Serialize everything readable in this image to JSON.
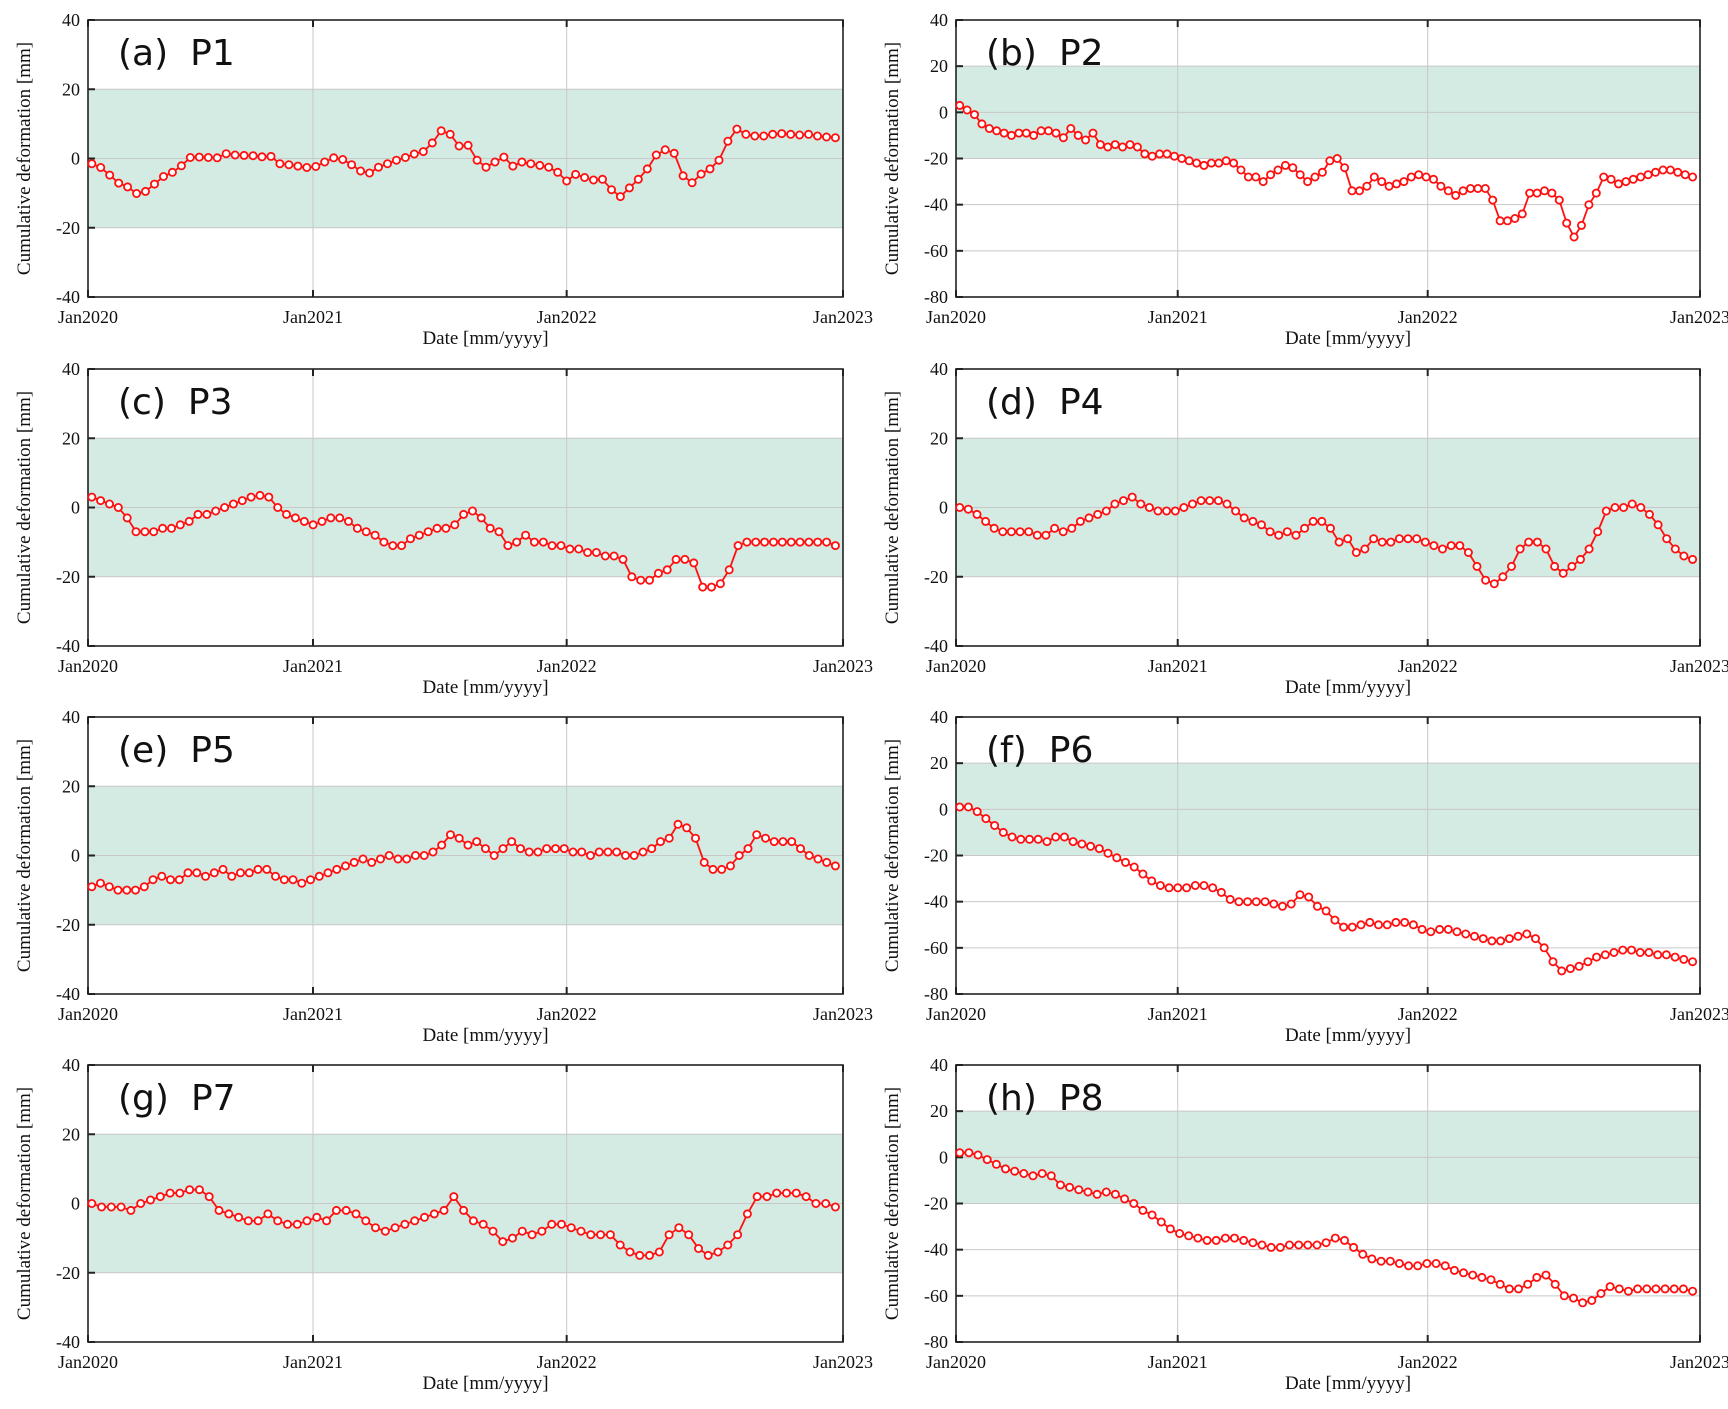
{
  "figure": {
    "xlabel": "Date [mm/yyyy]",
    "ylabel": "Cumulative deformation [mm]",
    "series_color": "#ff1010",
    "band_color": "#d3ebe2"
  },
  "chart_data": [
    {
      "type": "line",
      "id": "a",
      "panel_label": "(a)",
      "title": "P1",
      "xlabel": "Date [mm/yyyy]",
      "ylabel": "Cumulative deformation [mm]",
      "x_ticks": [
        "Jan2020",
        "Jan2021",
        "Jan2022",
        "Jan2023"
      ],
      "ylim": [
        -40,
        40
      ],
      "yticks": [
        "-40",
        "-20",
        "0",
        "20",
        "40"
      ],
      "band": [
        -20,
        20
      ],
      "values": [
        -1.5,
        -2.6,
        -4.8,
        -7.1,
        -8.2,
        -10.1,
        -9.5,
        -7.4,
        -5.2,
        -4.0,
        -2.1,
        0.3,
        0.4,
        0.3,
        0.2,
        1.4,
        1.0,
        0.9,
        0.8,
        0.5,
        0.6,
        -1.5,
        -1.8,
        -2.2,
        -2.6,
        -2.3,
        -1.0,
        0.2,
        -0.3,
        -1.8,
        -3.6,
        -4.2,
        -2.5,
        -1.5,
        -0.5,
        0.3,
        1.3,
        2.0,
        4.5,
        8.0,
        7.0,
        3.6,
        3.8,
        -0.5,
        -2.5,
        -1.0,
        0.4,
        -2.2,
        -1.0,
        -1.5,
        -2.0,
        -2.5,
        -4.0,
        -6.5,
        -4.6,
        -5.5,
        -6.2,
        -6.0,
        -9.0,
        -11.0,
        -8.5,
        -6.0,
        -3.0,
        1.0,
        2.5,
        1.5,
        -5.0,
        -7.0,
        -4.5,
        -3.0,
        -0.5,
        5.0,
        8.5,
        7.0,
        6.5,
        6.5,
        7.0,
        7.2,
        7.0,
        6.8,
        7.0,
        6.5,
        6.2,
        6.0
      ]
    },
    {
      "type": "line",
      "id": "b",
      "panel_label": "(b)",
      "title": "P2",
      "xlabel": "Date [mm/yyyy]",
      "ylabel": "Cumulative deformation [mm]",
      "x_ticks": [
        "Jan2020",
        "Jan2021",
        "Jan2022",
        "Jan2023"
      ],
      "ylim": [
        -80,
        40
      ],
      "yticks": [
        "-80",
        "-60",
        "-40",
        "-20",
        "0",
        "20",
        "40"
      ],
      "band": [
        -20,
        20
      ],
      "values": [
        3,
        1,
        -1,
        -5,
        -7,
        -8,
        -9,
        -10,
        -9,
        -9,
        -10,
        -8,
        -8,
        -9,
        -11,
        -7,
        -10,
        -12,
        -9,
        -14,
        -15,
        -14,
        -15,
        -14,
        -15,
        -18,
        -19,
        -18,
        -18,
        -19,
        -20,
        -21,
        -22,
        -23,
        -22,
        -22,
        -21,
        -22,
        -25,
        -28,
        -28,
        -30,
        -27,
        -25,
        -23,
        -24,
        -27,
        -30,
        -28,
        -26,
        -21,
        -20,
        -24,
        -34,
        -34,
        -32,
        -28,
        -30,
        -32,
        -31,
        -30,
        -28,
        -27,
        -28,
        -29,
        -32,
        -34,
        -36,
        -34,
        -33,
        -33,
        -33,
        -38,
        -47,
        -47,
        -46,
        -44,
        -35,
        -35,
        -34,
        -35,
        -38,
        -48,
        -54,
        -49,
        -40,
        -35,
        -28,
        -29,
        -31,
        -30,
        -29,
        -28,
        -27,
        -26,
        -25,
        -25,
        -26,
        -27,
        -28
      ]
    },
    {
      "type": "line",
      "id": "c",
      "panel_label": "(c)",
      "title": "P3",
      "xlabel": "Date [mm/yyyy]",
      "ylabel": "Cumulative deformation [mm]",
      "x_ticks": [
        "Jan2020",
        "Jan2021",
        "Jan2022",
        "Jan2023"
      ],
      "ylim": [
        -40,
        40
      ],
      "yticks": [
        "-40",
        "-20",
        "0",
        "20",
        "40"
      ],
      "band": [
        -20,
        20
      ],
      "values": [
        3,
        2,
        1,
        0,
        -3,
        -7,
        -7,
        -7,
        -6,
        -6,
        -5,
        -4,
        -2,
        -2,
        -1,
        0,
        1,
        2,
        3,
        3.5,
        3,
        0,
        -2,
        -3,
        -4,
        -5,
        -4,
        -3,
        -3,
        -4,
        -6,
        -7,
        -8,
        -10,
        -11,
        -11,
        -9,
        -8,
        -7,
        -6,
        -6,
        -5,
        -2,
        -1,
        -3,
        -6,
        -7,
        -11,
        -10,
        -8,
        -10,
        -10,
        -11,
        -11,
        -12,
        -12,
        -13,
        -13,
        -14,
        -14,
        -15,
        -20,
        -21,
        -21,
        -19,
        -18,
        -15,
        -15,
        -16,
        -23,
        -23,
        -22,
        -18,
        -11,
        -10,
        -10,
        -10,
        -10,
        -10,
        -10,
        -10,
        -10,
        -10,
        -10,
        -11
      ]
    },
    {
      "type": "line",
      "id": "d",
      "panel_label": "(d)",
      "title": "P4",
      "xlabel": "Date [mm/yyyy]",
      "ylabel": "Cumulative deformation [mm]",
      "x_ticks": [
        "Jan2020",
        "Jan2021",
        "Jan2022",
        "Jan2023"
      ],
      "ylim": [
        -40,
        40
      ],
      "yticks": [
        "-40",
        "-20",
        "0",
        "20",
        "40"
      ],
      "band": [
        -20,
        20
      ],
      "values": [
        0,
        -0.5,
        -2,
        -4,
        -6,
        -7,
        -7,
        -7,
        -7,
        -8,
        -8,
        -6,
        -7,
        -6,
        -4,
        -3,
        -2,
        -1,
        1,
        2,
        3,
        1,
        0,
        -1,
        -1,
        -1,
        0,
        1,
        2,
        2,
        2,
        1,
        -1,
        -3,
        -4,
        -5,
        -7,
        -8,
        -7,
        -8,
        -6,
        -4,
        -4,
        -6,
        -10,
        -9,
        -13,
        -12,
        -9,
        -10,
        -10,
        -9,
        -9,
        -9,
        -10,
        -11,
        -12,
        -11,
        -11,
        -13,
        -17,
        -21,
        -22,
        -20,
        -17,
        -12,
        -10,
        -10,
        -12,
        -17,
        -19,
        -17,
        -15,
        -12,
        -7,
        -1,
        0,
        0,
        1,
        0,
        -2,
        -5,
        -9,
        -12,
        -14,
        -15
      ]
    },
    {
      "type": "line",
      "id": "e",
      "panel_label": "(e)",
      "title": "P5",
      "xlabel": "Date [mm/yyyy]",
      "ylabel": "Cumulative deformation [mm]",
      "x_ticks": [
        "Jan2020",
        "Jan2021",
        "Jan2022",
        "Jan2023"
      ],
      "ylim": [
        -40,
        40
      ],
      "yticks": [
        "-40",
        "-20",
        "0",
        "20",
        "40"
      ],
      "band": [
        -20,
        20
      ],
      "values": [
        -9,
        -8,
        -9,
        -10,
        -10,
        -10,
        -9,
        -7,
        -6,
        -7,
        -7,
        -5,
        -5,
        -6,
        -5,
        -4,
        -6,
        -5,
        -5,
        -4,
        -4,
        -6,
        -7,
        -7,
        -8,
        -7,
        -6,
        -5,
        -4,
        -3,
        -2,
        -1,
        -2,
        -1,
        0,
        -1,
        -1,
        0,
        0,
        1,
        3,
        6,
        5,
        3,
        4,
        2,
        0,
        2,
        4,
        2,
        1,
        1,
        2,
        2,
        2,
        1,
        1,
        0,
        1,
        1,
        1,
        0,
        0,
        1,
        2,
        4,
        5,
        9,
        8,
        5,
        -2,
        -4,
        -4,
        -3,
        0,
        2,
        6,
        5,
        4,
        4,
        4,
        2,
        0,
        -1,
        -2,
        -3
      ]
    },
    {
      "type": "line",
      "id": "f",
      "panel_label": "(f)",
      "title": "P6",
      "xlabel": "Date [mm/yyyy]",
      "ylabel": "Cumulative deformation [mm]",
      "x_ticks": [
        "Jan2020",
        "Jan2021",
        "Jan2022",
        "Jan2023"
      ],
      "ylim": [
        -80,
        40
      ],
      "yticks": [
        "-80",
        "-60",
        "-40",
        "-20",
        "0",
        "20",
        "40"
      ],
      "band": [
        -20,
        20
      ],
      "values": [
        1,
        1,
        -1,
        -4,
        -7,
        -10,
        -12,
        -13,
        -13,
        -13,
        -14,
        -12,
        -12,
        -14,
        -15,
        -16,
        -17,
        -19,
        -21,
        -23,
        -25,
        -28,
        -31,
        -33,
        -34,
        -34,
        -34,
        -33,
        -33,
        -34,
        -36,
        -39,
        -40,
        -40,
        -40,
        -40,
        -41,
        -42,
        -41,
        -37,
        -38,
        -42,
        -44,
        -48,
        -51,
        -51,
        -50,
        -49,
        -50,
        -50,
        -49,
        -49,
        -50,
        -52,
        -53,
        -52,
        -52,
        -53,
        -54,
        -55,
        -56,
        -57,
        -57,
        -56,
        -55,
        -54,
        -56,
        -60,
        -66,
        -70,
        -69,
        -68,
        -66,
        -64,
        -63,
        -62,
        -61,
        -61,
        -62,
        -62,
        -63,
        -63,
        -64,
        -65,
        -66
      ]
    },
    {
      "type": "line",
      "id": "g",
      "panel_label": "(g)",
      "title": "P7",
      "xlabel": "Date [mm/yyyy]",
      "ylabel": "Cumulative deformation [mm]",
      "x_ticks": [
        "Jan2020",
        "Jan2021",
        "Jan2022",
        "Jan2023"
      ],
      "ylim": [
        -40,
        40
      ],
      "yticks": [
        "-40",
        "-20",
        "0",
        "20",
        "40"
      ],
      "band": [
        -20,
        20
      ],
      "values": [
        0,
        -1,
        -1,
        -1,
        -2,
        0,
        1,
        2,
        3,
        3,
        4,
        4,
        2,
        -2,
        -3,
        -4,
        -5,
        -5,
        -3,
        -5,
        -6,
        -6,
        -5,
        -4,
        -5,
        -2,
        -2,
        -3,
        -5,
        -7,
        -8,
        -7,
        -6,
        -5,
        -4,
        -3,
        -2,
        2,
        -2,
        -5,
        -6,
        -8,
        -11,
        -10,
        -8,
        -9,
        -8,
        -6,
        -6,
        -7,
        -8,
        -9,
        -9,
        -9,
        -12,
        -14,
        -15,
        -15,
        -14,
        -9,
        -7,
        -9,
        -13,
        -15,
        -14,
        -12,
        -9,
        -3,
        2,
        2,
        3,
        3,
        3,
        2,
        0,
        0,
        -1
      ]
    },
    {
      "type": "line",
      "id": "h",
      "panel_label": "(h)",
      "title": "P8",
      "xlabel": "Date [mm/yyyy]",
      "ylabel": "Cumulative deformation [mm]",
      "x_ticks": [
        "Jan2020",
        "Jan2021",
        "Jan2022",
        "Jan2023"
      ],
      "ylim": [
        -80,
        40
      ],
      "yticks": [
        "-80",
        "-60",
        "-40",
        "-20",
        "0",
        "20",
        "40"
      ],
      "band": [
        -20,
        20
      ],
      "values": [
        2,
        2,
        1,
        -1,
        -3,
        -5,
        -6,
        -7,
        -8,
        -7,
        -8,
        -12,
        -13,
        -14,
        -15,
        -16,
        -15,
        -16,
        -18,
        -20,
        -23,
        -25,
        -28,
        -31,
        -33,
        -34,
        -35,
        -36,
        -36,
        -35,
        -35,
        -36,
        -37,
        -38,
        -39,
        -39,
        -38,
        -38,
        -38,
        -38,
        -37,
        -35,
        -36,
        -39,
        -42,
        -44,
        -45,
        -45,
        -46,
        -47,
        -47,
        -46,
        -46,
        -47,
        -49,
        -50,
        -51,
        -52,
        -53,
        -55,
        -57,
        -57,
        -55,
        -52,
        -51,
        -55,
        -60,
        -61,
        -63,
        -62,
        -59,
        -56,
        -57,
        -58,
        -57,
        -57,
        -57,
        -57,
        -57,
        -57,
        -58
      ]
    }
  ]
}
